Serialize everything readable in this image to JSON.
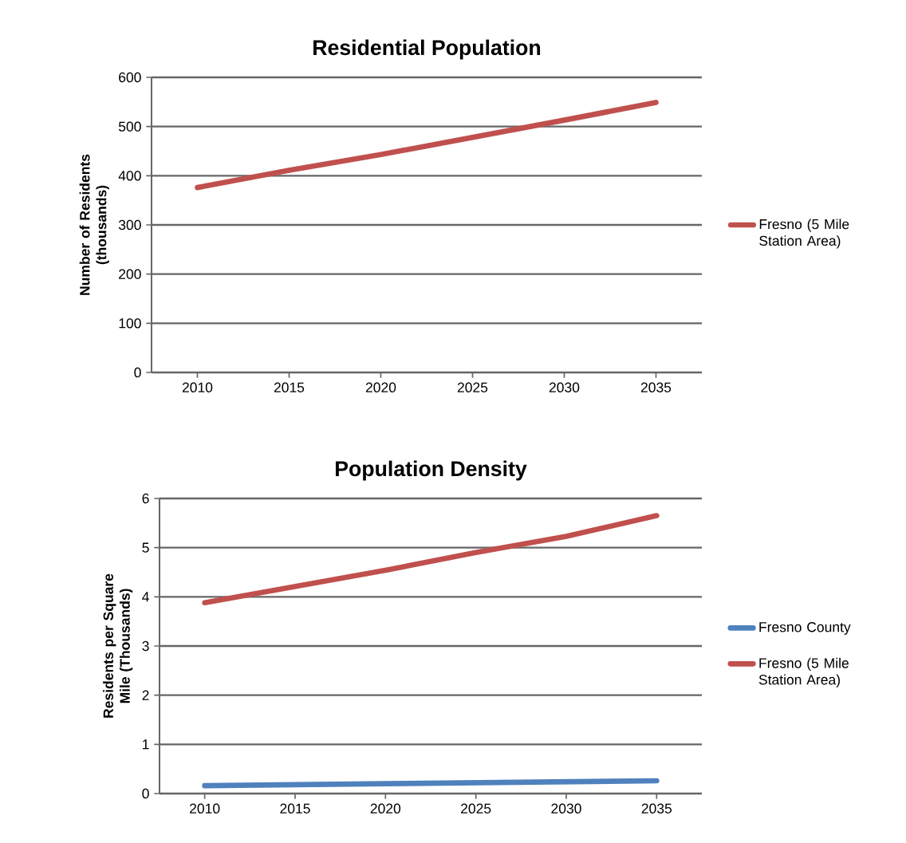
{
  "chart_data": [
    {
      "type": "line",
      "title": "Residential Population",
      "ylabel": "Number of Residents (thousands)",
      "categories": [
        "2010",
        "2015",
        "2020",
        "2025",
        "2030",
        "2035"
      ],
      "series": [
        {
          "name": "Fresno (5 Mile Station Area)",
          "color": "#c0504d",
          "values": [
            376,
            411,
            443,
            478,
            513,
            549
          ]
        }
      ],
      "ylim": [
        0,
        600
      ],
      "yticks": [
        0,
        100,
        200,
        300,
        400,
        500,
        600
      ],
      "grid": "y",
      "legend": "right"
    },
    {
      "type": "line",
      "title": "Population Density",
      "ylabel": "Residents per Square Mile (Thousands)",
      "categories": [
        "2010",
        "2015",
        "2020",
        "2025",
        "2030",
        "2035"
      ],
      "series": [
        {
          "name": "Fresno County",
          "color": "#4f81bd",
          "values": [
            0.16,
            0.18,
            0.2,
            0.22,
            0.24,
            0.26
          ]
        },
        {
          "name": "Fresno (5 Mile Station Area)",
          "color": "#c0504d",
          "values": [
            3.88,
            4.21,
            4.54,
            4.9,
            5.23,
            5.65
          ]
        }
      ],
      "ylim": [
        0,
        6
      ],
      "yticks": [
        0,
        1,
        2,
        3,
        4,
        5,
        6
      ],
      "grid": "y",
      "legend": "right"
    }
  ]
}
